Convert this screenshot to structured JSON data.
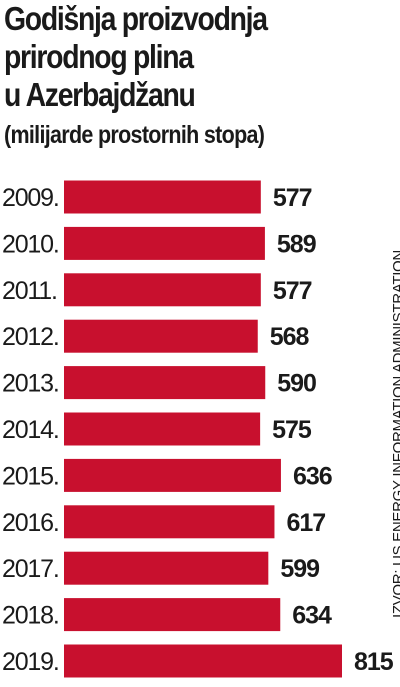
{
  "chart_data": {
    "type": "bar",
    "orientation": "horizontal",
    "title_lines": [
      "Godišnja proizvodnja",
      "prirodnog plina",
      "u Azerbajdžanu"
    ],
    "subtitle": "(milijarde prostornih stopa)",
    "categories": [
      "2009.",
      "2010.",
      "2011.",
      "2012.",
      "2013.",
      "2014.",
      "2015.",
      "2016.",
      "2017.",
      "2018.",
      "2019."
    ],
    "values": [
      577,
      589,
      577,
      568,
      590,
      575,
      636,
      617,
      599,
      634,
      815
    ],
    "value_labels": [
      "577",
      "589",
      "577",
      "568",
      "590",
      "575",
      "636",
      "617",
      "599",
      "634",
      "815"
    ],
    "bar_color": "#c8102e",
    "source": "IZVOR: US ENERGY INFORMATION ADMINISTRATION",
    "xlim": [
      0,
      815
    ],
    "grid": false,
    "legend": "none"
  }
}
